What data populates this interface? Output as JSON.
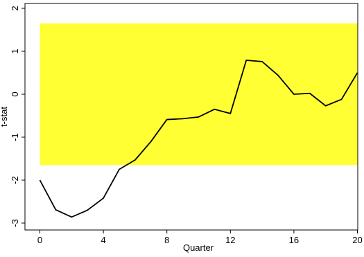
{
  "chart_data": {
    "type": "line",
    "title": "",
    "xlabel": "Quarter",
    "ylabel": "t-stat",
    "xlim": [
      0,
      20
    ],
    "ylim": [
      -3,
      2
    ],
    "xticks": [
      0,
      4,
      8,
      12,
      16,
      20
    ],
    "yticks": [
      -3,
      -2,
      -1,
      0,
      1,
      2
    ],
    "grid": false,
    "band": {
      "y_low": -1.65,
      "y_high": 1.65,
      "color": "#ffff33"
    },
    "series": [
      {
        "color": "#000000",
        "x": [
          0,
          1,
          2,
          3,
          4,
          5,
          6,
          7,
          8,
          9,
          10,
          11,
          12,
          13,
          14,
          15,
          16,
          17,
          18,
          19,
          20
        ],
        "y": [
          -2.0,
          -2.69,
          -2.86,
          -2.7,
          -2.42,
          -1.75,
          -1.53,
          -1.1,
          -0.59,
          -0.57,
          -0.53,
          -0.35,
          -0.45,
          0.79,
          0.76,
          0.44,
          0.0,
          0.02,
          -0.27,
          -0.12,
          0.5
        ]
      }
    ]
  }
}
